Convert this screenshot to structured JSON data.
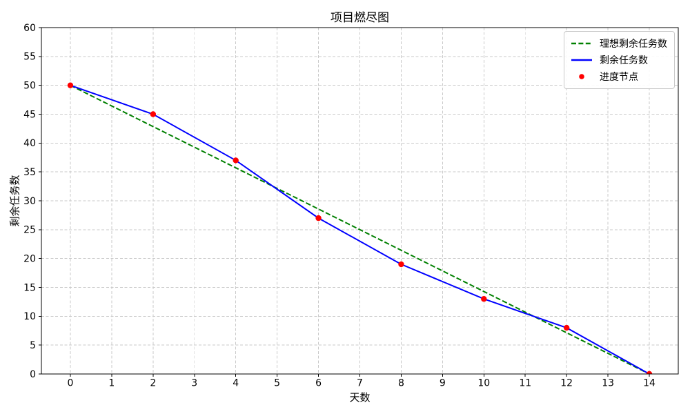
{
  "chart_data": {
    "type": "line",
    "title": "项目燃尽图",
    "xlabel": "天数",
    "ylabel": "剩余任务数",
    "xlim": [
      -0.7,
      14.7
    ],
    "ylim": [
      0,
      60
    ],
    "xticks": [
      0,
      1,
      2,
      3,
      4,
      5,
      6,
      7,
      8,
      9,
      10,
      11,
      12,
      13,
      14
    ],
    "yticks": [
      0,
      5,
      10,
      15,
      20,
      25,
      30,
      35,
      40,
      45,
      50,
      55,
      60
    ],
    "grid": {
      "on": true,
      "linestyle": "dashed",
      "color": "#c9c9c9"
    },
    "legend": {
      "position": "upper-right"
    },
    "series": [
      {
        "name": "理想剩余任务数",
        "kind": "line",
        "linestyle": "dashed",
        "color": "#008000",
        "x": [
          0,
          14
        ],
        "values": [
          50,
          0
        ]
      },
      {
        "name": "剩余任务数",
        "kind": "line",
        "linestyle": "solid",
        "color": "#0000ff",
        "x": [
          0,
          2,
          4,
          6,
          8,
          10,
          12,
          14
        ],
        "values": [
          50,
          45,
          37,
          27,
          19,
          13,
          8,
          0
        ]
      },
      {
        "name": "进度节点",
        "kind": "scatter",
        "color": "#ff0000",
        "x": [
          0,
          2,
          4,
          6,
          8,
          10,
          12,
          14
        ],
        "values": [
          50,
          45,
          37,
          27,
          19,
          13,
          8,
          0
        ]
      }
    ],
    "colors": {
      "axis": "#000000",
      "background": "#ffffff"
    }
  }
}
